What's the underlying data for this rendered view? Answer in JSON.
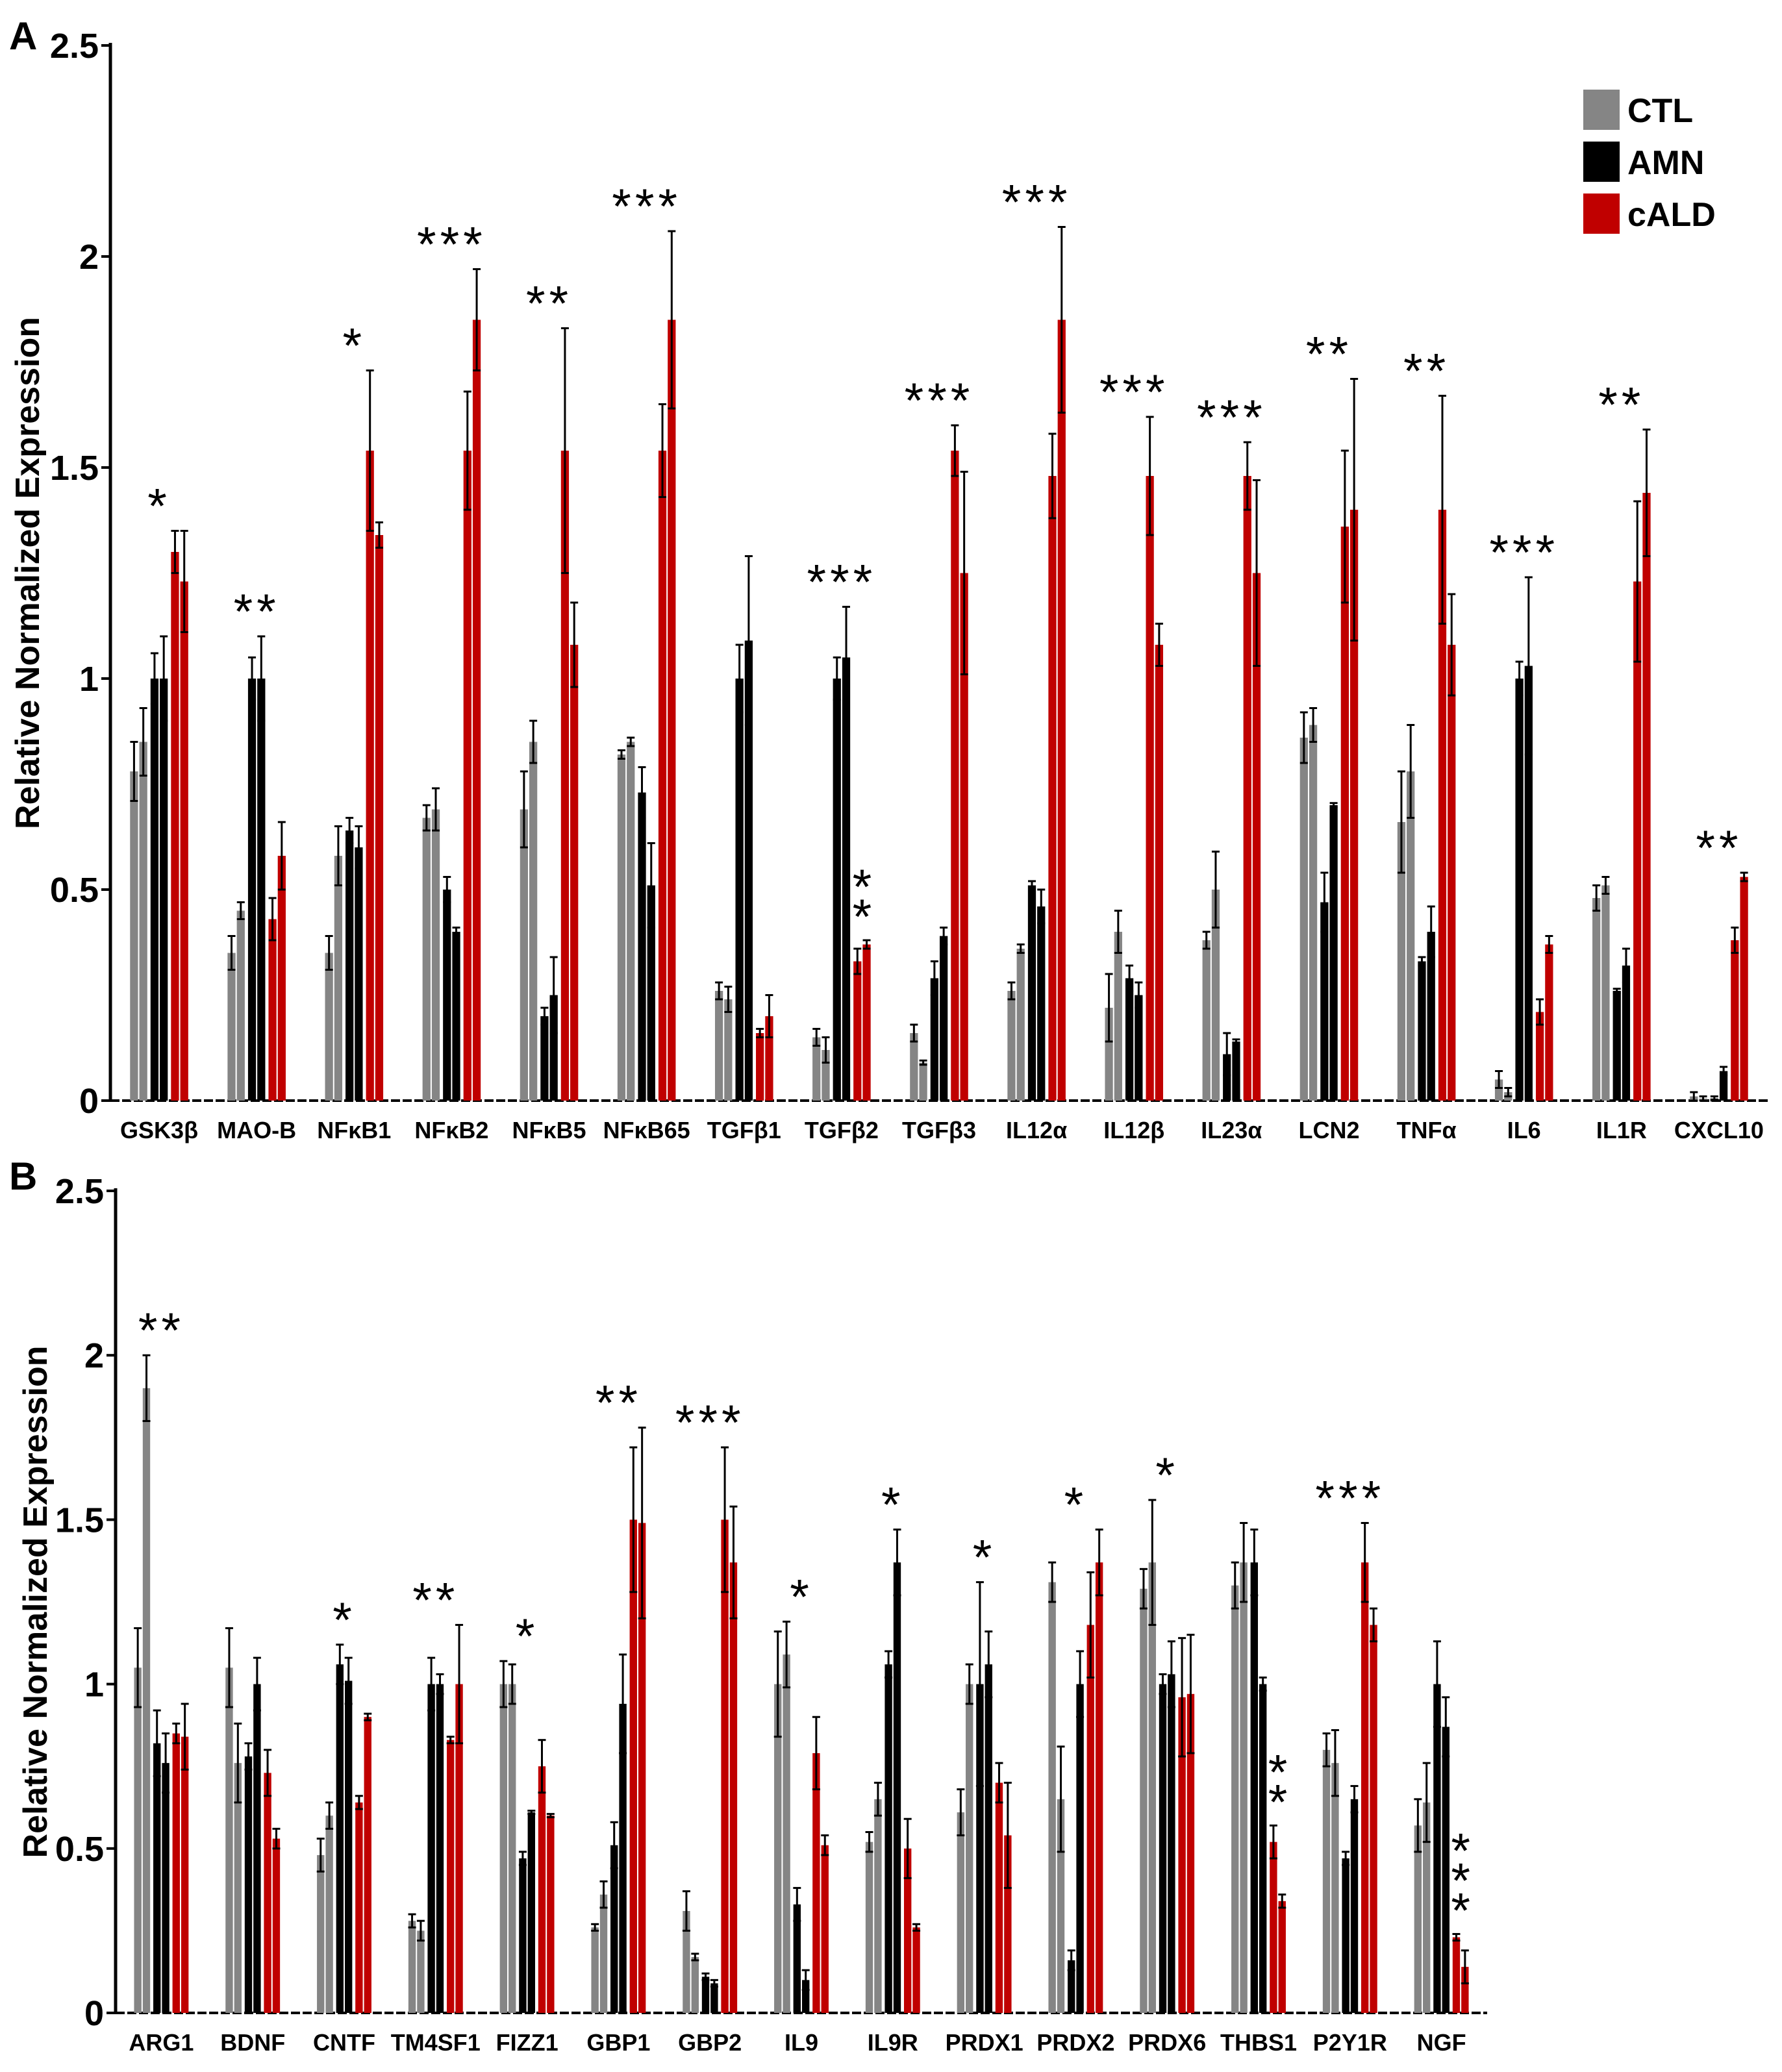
{
  "colors": {
    "CTL": "#858585",
    "AMN": "#000000",
    "cALD": "#c00000",
    "axis": "#000000"
  },
  "legend": [
    "CTL",
    "AMN",
    "cALD"
  ],
  "chart_data": [
    {
      "panel": "A",
      "type": "bar",
      "ylabel": "Relative Normalized Expression",
      "xlabel": "",
      "ylim": [
        0,
        2.5
      ],
      "yticks": [
        "0",
        "0.5",
        "1",
        "1.5",
        "2",
        "2.5"
      ],
      "categories": [
        "GSK3β",
        "MAO-B",
        "NFκB1",
        "NFκB2",
        "NFκB5",
        "NFκB65",
        "TGFβ1",
        "TGFβ2",
        "TGFβ3",
        "IL12α",
        "IL12β",
        "IL23α",
        "LCN2",
        "TNFα",
        "IL6",
        "IL1R",
        "CXCL10"
      ],
      "series": [
        {
          "name": "CTL",
          "values": [
            [
              0.78,
              0.85
            ],
            [
              0.35,
              0.45
            ],
            [
              0.35,
              0.58
            ],
            [
              0.67,
              0.69
            ],
            [
              0.69,
              0.85
            ],
            [
              0.82,
              0.85
            ],
            [
              0.26,
              0.24
            ],
            [
              0.15,
              0.12
            ],
            [
              0.16,
              0.09
            ],
            [
              0.26,
              0.36
            ],
            [
              0.22,
              0.4
            ],
            [
              0.38,
              0.5
            ],
            [
              0.86,
              0.89
            ],
            [
              0.66,
              0.78
            ],
            [
              0.05,
              0.02
            ],
            [
              0.48,
              0.51
            ],
            [
              0.01,
              0.005
            ]
          ]
        },
        {
          "name": "AMN",
          "values": [
            [
              1.0,
              1.0
            ],
            [
              1.0,
              1.0
            ],
            [
              0.64,
              0.6
            ],
            [
              0.5,
              0.4
            ],
            [
              0.2,
              0.25
            ],
            [
              0.73,
              0.51
            ],
            [
              1.0,
              1.09
            ],
            [
              1.0,
              1.05
            ],
            [
              0.29,
              0.39
            ],
            [
              0.51,
              0.46
            ],
            [
              0.29,
              0.25
            ],
            [
              0.11,
              0.14
            ],
            [
              0.47,
              0.7
            ],
            [
              0.33,
              0.4
            ],
            [
              1.0,
              1.03
            ],
            [
              0.26,
              0.32
            ],
            [
              0.005,
              0.07
            ]
          ]
        },
        {
          "name": "cALD",
          "values": [
            [
              1.3,
              1.23
            ],
            [
              0.43,
              0.58
            ],
            [
              1.54,
              1.34
            ],
            [
              1.54,
              1.85
            ],
            [
              1.54,
              1.08
            ],
            [
              1.54,
              1.85
            ],
            [
              0.16,
              0.2
            ],
            [
              0.33,
              0.37
            ],
            [
              1.54,
              1.25
            ],
            [
              1.48,
              1.85
            ],
            [
              1.48,
              1.08
            ],
            [
              1.48,
              1.25
            ],
            [
              1.36,
              1.4
            ],
            [
              1.4,
              1.08
            ],
            [
              0.21,
              0.37
            ],
            [
              1.23,
              1.44
            ],
            [
              0.38,
              0.53
            ]
          ]
        }
      ],
      "errors": {
        "CTL": [
          [
            0.07,
            0.08
          ],
          [
            0.04,
            0.02
          ],
          [
            0.04,
            0.07
          ],
          [
            0.03,
            0.05
          ],
          [
            0.09,
            0.05
          ],
          [
            0.01,
            0.01
          ],
          [
            0.02,
            0.03
          ],
          [
            0.02,
            0.03
          ],
          [
            0.02,
            0.005
          ],
          [
            0.02,
            0.01
          ],
          [
            0.08,
            0.05
          ],
          [
            0.02,
            0.09
          ],
          [
            0.06,
            0.04
          ],
          [
            0.12,
            0.11
          ],
          [
            0.02,
            0.01
          ],
          [
            0.03,
            0.02
          ],
          [
            0.01,
            0.005
          ]
        ],
        "AMN": [
          [
            0.06,
            0.1
          ],
          [
            0.05,
            0.1
          ],
          [
            0.03,
            0.05
          ],
          [
            0.03,
            0.01
          ],
          [
            0.02,
            0.09
          ],
          [
            0.06,
            0.1
          ],
          [
            0.08,
            0.2
          ],
          [
            0.05,
            0.12
          ],
          [
            0.04,
            0.02
          ],
          [
            0.01,
            0.04
          ],
          [
            0.03,
            0.03
          ],
          [
            0.05,
            0.005
          ],
          [
            0.07,
            0.005
          ],
          [
            0.01,
            0.06
          ],
          [
            0.04,
            0.21
          ],
          [
            0.005,
            0.04
          ],
          [
            0.005,
            0.01
          ]
        ],
        "cALD": [
          [
            0.05,
            0.12
          ],
          [
            0.05,
            0.08
          ],
          [
            0.19,
            0.03
          ],
          [
            0.14,
            0.12
          ],
          [
            0.29,
            0.1
          ],
          [
            0.11,
            0.21
          ],
          [
            0.01,
            0.05
          ],
          [
            0.03,
            0.01
          ],
          [
            0.06,
            0.24
          ],
          [
            0.1,
            0.22
          ],
          [
            0.14,
            0.05
          ],
          [
            0.08,
            0.22
          ],
          [
            0.18,
            0.31
          ],
          [
            0.27,
            0.12
          ],
          [
            0.03,
            0.02
          ],
          [
            0.19,
            0.15
          ],
          [
            0.03,
            0.01
          ]
        ]
      },
      "annotations": [
        {
          "category": "GSK3β",
          "text": "*"
        },
        {
          "category": "MAO-B",
          "text": "**"
        },
        {
          "category": "NFκB1",
          "text": "*"
        },
        {
          "category": "NFκB2",
          "text": "***"
        },
        {
          "category": "NFκB5",
          "text": "**"
        },
        {
          "category": "NFκB65",
          "text": "***"
        },
        {
          "category": "TGFβ2",
          "text": "***"
        },
        {
          "category": "TGFβ2",
          "text": "**",
          "vertical": true
        },
        {
          "category": "TGFβ3",
          "text": "***"
        },
        {
          "category": "IL12α",
          "text": "***"
        },
        {
          "category": "IL12β",
          "text": "***"
        },
        {
          "category": "IL23α",
          "text": "***"
        },
        {
          "category": "LCN2",
          "text": "**"
        },
        {
          "category": "TNFα",
          "text": "**"
        },
        {
          "category": "IL6",
          "text": "***"
        },
        {
          "category": "IL1R",
          "text": "**"
        },
        {
          "category": "CXCL10",
          "text": "**"
        }
      ]
    },
    {
      "panel": "B",
      "type": "bar",
      "ylabel": "Relative Normalized Expression",
      "xlabel": "",
      "ylim": [
        0,
        2.5
      ],
      "yticks": [
        "0",
        "0.5",
        "1",
        "1.5",
        "2",
        "2.5"
      ],
      "categories": [
        "ARG1",
        "BDNF",
        "CNTF",
        "TM4SF1",
        "FIZZ1",
        "GBP1",
        "GBP2",
        "IL9",
        "IL9R",
        "PRDX1",
        "PRDX2",
        "PRDX6",
        "THBS1",
        "P2Y1R",
        "NGF"
      ],
      "series": [
        {
          "name": "CTL",
          "values": [
            [
              1.05,
              1.9
            ],
            [
              1.05,
              0.76
            ],
            [
              0.48,
              0.6
            ],
            [
              0.28,
              0.25
            ],
            [
              1.0,
              1.0
            ],
            [
              0.26,
              0.36
            ],
            [
              0.31,
              0.17
            ],
            [
              1.0,
              1.09
            ],
            [
              0.52,
              0.65
            ],
            [
              0.61,
              1.0
            ],
            [
              1.31,
              0.65
            ],
            [
              1.29,
              1.37
            ],
            [
              1.3,
              1.37
            ],
            [
              0.8,
              0.76
            ],
            [
              0.57,
              0.64
            ]
          ]
        },
        {
          "name": "AMN",
          "values": [
            [
              0.82,
              0.76
            ],
            [
              0.78,
              1.0
            ],
            [
              1.06,
              1.01
            ],
            [
              1.0,
              1.0
            ],
            [
              0.47,
              0.61
            ],
            [
              0.51,
              0.94
            ],
            [
              0.11,
              0.09
            ],
            [
              0.33,
              0.1
            ],
            [
              1.06,
              1.37
            ],
            [
              1.0,
              1.06
            ],
            [
              0.16,
              1.0
            ],
            [
              1.0,
              1.03
            ],
            [
              1.37,
              1.0
            ],
            [
              0.47,
              0.65
            ],
            [
              1.0,
              0.87
            ]
          ]
        },
        {
          "name": "cALD",
          "values": [
            [
              0.85,
              0.84
            ],
            [
              0.73,
              0.53
            ],
            [
              0.64,
              0.9
            ],
            [
              0.83,
              1.0
            ],
            [
              0.75,
              0.6
            ],
            [
              1.5,
              1.49
            ],
            [
              1.5,
              1.37
            ],
            [
              0.79,
              0.51
            ],
            [
              0.5,
              0.26
            ],
            [
              0.7,
              0.54
            ],
            [
              1.18,
              1.37
            ],
            [
              0.96,
              0.97
            ],
            [
              0.52,
              0.34
            ],
            [
              1.37,
              1.18
            ],
            [
              0.23,
              0.14
            ]
          ]
        }
      ],
      "errors": {
        "CTL": [
          [
            0.12,
            0.1
          ],
          [
            0.12,
            0.12
          ],
          [
            0.05,
            0.04
          ],
          [
            0.02,
            0.03
          ],
          [
            0.07,
            0.06
          ],
          [
            0.01,
            0.04
          ],
          [
            0.06,
            0.01
          ],
          [
            0.16,
            0.1
          ],
          [
            0.03,
            0.05
          ],
          [
            0.07,
            0.06
          ],
          [
            0.06,
            0.16
          ],
          [
            0.06,
            0.19
          ],
          [
            0.07,
            0.12
          ],
          [
            0.05,
            0.1
          ],
          [
            0.08,
            0.12
          ]
        ],
        "AMN": [
          [
            0.1,
            0.09
          ],
          [
            0.04,
            0.08
          ],
          [
            0.06,
            0.07
          ],
          [
            0.08,
            0.03
          ],
          [
            0.02,
            0.005
          ],
          [
            0.07,
            0.15
          ],
          [
            0.01,
            0.01
          ],
          [
            0.05,
            0.03
          ],
          [
            0.04,
            0.1
          ],
          [
            0.31,
            0.1
          ],
          [
            0.03,
            0.1
          ],
          [
            0.03,
            0.1
          ],
          [
            0.1,
            0.02
          ],
          [
            0.02,
            0.04
          ],
          [
            0.13,
            0.09
          ]
        ],
        "cALD": [
          [
            0.03,
            0.1
          ],
          [
            0.07,
            0.03
          ],
          [
            0.02,
            0.01
          ],
          [
            0.01,
            0.18
          ],
          [
            0.08,
            0.005
          ],
          [
            0.22,
            0.29
          ],
          [
            0.22,
            0.17
          ],
          [
            0.11,
            0.03
          ],
          [
            0.09,
            0.01
          ],
          [
            0.06,
            0.16
          ],
          [
            0.16,
            0.1
          ],
          [
            0.18,
            0.18
          ],
          [
            0.05,
            0.02
          ],
          [
            0.12,
            0.05
          ],
          [
            0.01,
            0.05
          ]
        ]
      },
      "annotations": [
        {
          "category": "ARG1",
          "text": "**"
        },
        {
          "category": "CNTF",
          "text": "*"
        },
        {
          "category": "TM4SF1",
          "text": "**"
        },
        {
          "category": "FIZZ1",
          "text": "*"
        },
        {
          "category": "GBP1",
          "text": "**"
        },
        {
          "category": "GBP2",
          "text": "***"
        },
        {
          "category": "IL9",
          "text": "*"
        },
        {
          "category": "IL9R",
          "text": "*"
        },
        {
          "category": "PRDX1",
          "text": "*"
        },
        {
          "category": "PRDX2",
          "text": "*"
        },
        {
          "category": "PRDX6",
          "text": "*"
        },
        {
          "category": "THBS1",
          "text": "**",
          "vertical": true
        },
        {
          "category": "P2Y1R",
          "text": "***"
        },
        {
          "category": "NGF",
          "text": "***",
          "vertical": true
        }
      ]
    }
  ]
}
